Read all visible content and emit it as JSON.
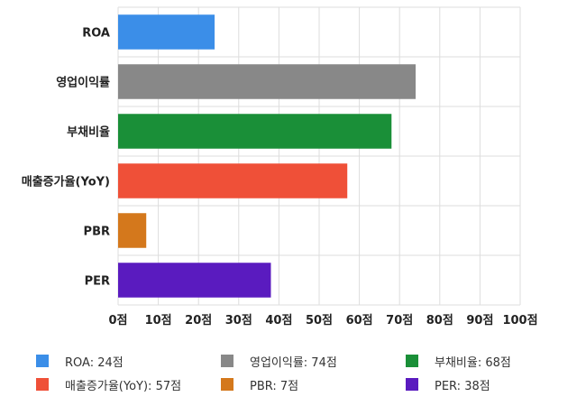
{
  "chart_data": {
    "type": "bar",
    "orientation": "horizontal",
    "categories": [
      "ROA",
      "영업이익률",
      "부채비율",
      "매출증가율(YoY)",
      "PBR",
      "PER"
    ],
    "values": [
      24,
      74,
      68,
      57,
      7,
      38
    ],
    "colors": [
      "#3b8ee8",
      "#888888",
      "#1a8f38",
      "#ef5038",
      "#d4781c",
      "#5a1bbf"
    ],
    "xlim": [
      0,
      100
    ],
    "xticks": [
      0,
      10,
      20,
      30,
      40,
      50,
      60,
      70,
      80,
      90,
      100
    ],
    "tick_suffix": "점",
    "grid": true,
    "legend_position": "bottom",
    "legend": [
      {
        "label": "ROA: 24점",
        "color": "#3b8ee8"
      },
      {
        "label": "영업이익률: 74점",
        "color": "#888888"
      },
      {
        "label": "부채비율: 68점",
        "color": "#1a8f38"
      },
      {
        "label": "매출증가율(YoY): 57점",
        "color": "#ef5038"
      },
      {
        "label": "PBR: 7점",
        "color": "#d4781c"
      },
      {
        "label": "PER: 38점",
        "color": "#5a1bbf"
      }
    ]
  }
}
